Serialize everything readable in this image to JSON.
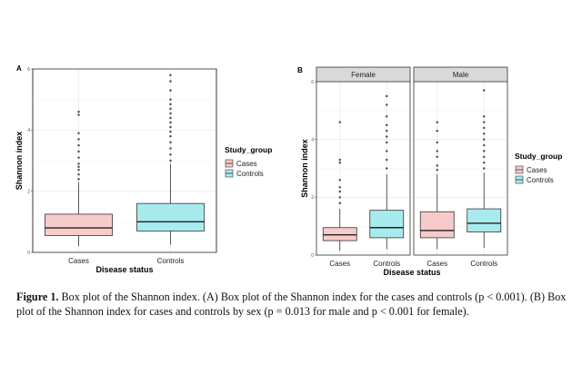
{
  "colors": {
    "cases": "#f8cbcb",
    "controls": "#a8ebee",
    "grid": "#ebebeb",
    "strip": "#d9d9d9",
    "outlier": "#555555"
  },
  "legend": {
    "title": "Study_group",
    "items": [
      "Cases",
      "Controls"
    ]
  },
  "caption": {
    "lead": "Figure 1.",
    "text": " Box plot of the Shannon index. (A) Box plot of the Shannon index for the cases and controls (p < 0.001). (B) Box plot of the Shannon index for cases and controls by sex (p = 0.013 for male and p < 0.001 for female)."
  },
  "chart_data": [
    {
      "type": "box",
      "panel_label": "A",
      "xlabel": "Disease status",
      "ylabel": "Shannon index",
      "categories": [
        "Cases",
        "Controls"
      ],
      "yticks": [
        0,
        2,
        4,
        6
      ],
      "ylim": [
        0,
        6
      ],
      "legend_position": "right",
      "boxes": [
        {
          "category": "Cases",
          "group": "Cases",
          "whisker_low": 0.2,
          "q1": 0.55,
          "median": 0.8,
          "q3": 1.25,
          "whisker_high": 2.3,
          "outliers": [
            2.4,
            2.55,
            2.7,
            2.8,
            2.9,
            3.1,
            3.3,
            3.5,
            3.7,
            3.9,
            4.5,
            4.6
          ]
        },
        {
          "category": "Controls",
          "group": "Controls",
          "whisker_low": 0.25,
          "q1": 0.7,
          "median": 1.0,
          "q3": 1.6,
          "whisker_high": 2.9,
          "outliers": [
            3.0,
            3.2,
            3.4,
            3.6,
            3.8,
            3.95,
            4.1,
            4.25,
            4.4,
            4.55,
            4.7,
            4.85,
            5.0,
            5.3,
            5.6,
            5.8
          ]
        }
      ]
    },
    {
      "type": "box",
      "panel_label": "B",
      "xlabel": "Disease status",
      "ylabel": "Shannon index",
      "facets": [
        "Female",
        "Male"
      ],
      "categories": [
        "Cases",
        "Controls"
      ],
      "yticks": [
        0,
        2,
        4,
        6
      ],
      "ylim": [
        0,
        6
      ],
      "legend_position": "right",
      "boxes": [
        {
          "facet": "Female",
          "category": "Cases",
          "group": "Cases",
          "whisker_low": 0.15,
          "q1": 0.5,
          "median": 0.7,
          "q3": 0.95,
          "whisker_high": 1.6,
          "outliers": [
            1.8,
            2.0,
            2.2,
            2.35,
            2.6,
            3.2,
            3.3,
            4.6
          ]
        },
        {
          "facet": "Female",
          "category": "Controls",
          "group": "Controls",
          "whisker_low": 0.2,
          "q1": 0.6,
          "median": 0.95,
          "q3": 1.55,
          "whisker_high": 2.8,
          "outliers": [
            3.0,
            3.3,
            3.6,
            3.9,
            4.1,
            4.3,
            4.5,
            4.8,
            5.2,
            5.5
          ]
        },
        {
          "facet": "Male",
          "category": "Cases",
          "group": "Cases",
          "whisker_low": 0.2,
          "q1": 0.6,
          "median": 0.85,
          "q3": 1.5,
          "whisker_high": 2.8,
          "outliers": [
            2.95,
            3.1,
            3.4,
            3.6,
            3.9,
            4.3,
            4.6
          ]
        },
        {
          "facet": "Male",
          "category": "Controls",
          "group": "Controls",
          "whisker_low": 0.25,
          "q1": 0.8,
          "median": 1.1,
          "q3": 1.6,
          "whisker_high": 2.85,
          "outliers": [
            3.0,
            3.2,
            3.4,
            3.6,
            3.8,
            4.0,
            4.2,
            4.4,
            4.6,
            4.8,
            5.7
          ]
        }
      ]
    }
  ]
}
